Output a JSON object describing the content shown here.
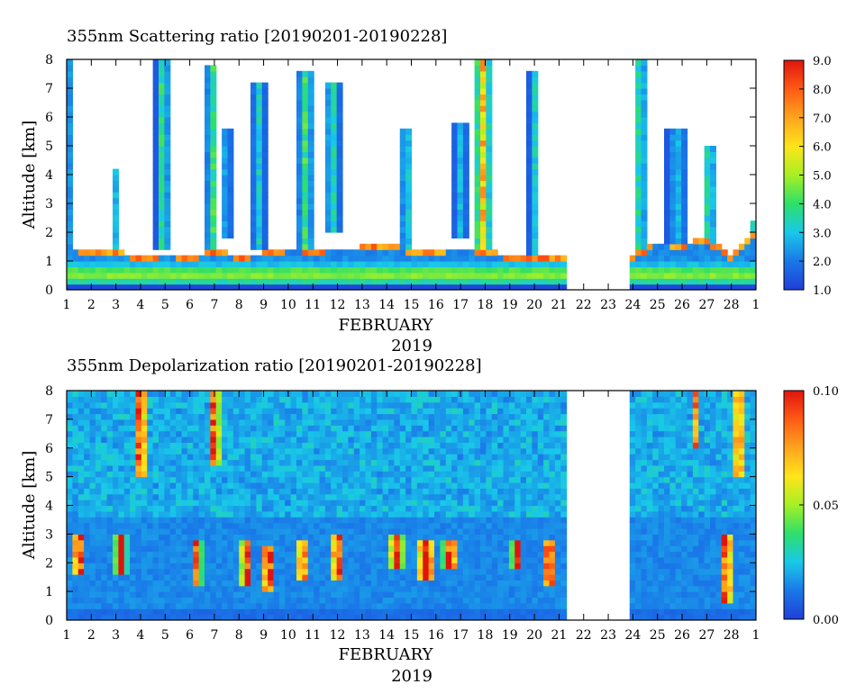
{
  "chart_data": [
    {
      "type": "heatmap",
      "title": "355nm Scattering ratio [20190201-20190228]",
      "xlabel": "FEBRUARY",
      "xlabel2": "2019",
      "ylabel": "Altitude [km]",
      "x_ticks": [
        "1",
        "2",
        "3",
        "4",
        "5",
        "6",
        "7",
        "8",
        "9",
        "10",
        "11",
        "12",
        "13",
        "14",
        "15",
        "16",
        "17",
        "18",
        "19",
        "20",
        "21",
        "22",
        "23",
        "24",
        "25",
        "26",
        "27",
        "28",
        "1"
      ],
      "y_ticks": [
        "0",
        "1",
        "2",
        "3",
        "4",
        "5",
        "6",
        "7",
        "8"
      ],
      "ylim": [
        0,
        8
      ],
      "colorbar": {
        "min": 1.0,
        "max": 9.0,
        "ticks": [
          "1.0",
          "2.0",
          "3.0",
          "4.0",
          "5.0",
          "6.0",
          "7.0",
          "8.0",
          "9.0"
        ]
      },
      "no_data_days": [
        21.2,
        23.9
      ],
      "boundary_layer_top_km": [
        [
          1,
          1.5
        ],
        [
          2,
          1.4
        ],
        [
          3,
          1.4
        ],
        [
          4,
          1.1
        ],
        [
          5,
          1.3
        ],
        [
          6,
          1.2
        ],
        [
          7,
          1.4
        ],
        [
          8,
          1.2
        ],
        [
          9,
          1.3
        ],
        [
          10,
          1.5
        ],
        [
          11,
          1.4
        ],
        [
          12,
          1.5
        ],
        [
          13,
          1.5
        ],
        [
          14,
          1.6
        ],
        [
          15,
          1.4
        ],
        [
          16,
          1.4
        ],
        [
          17,
          1.5
        ],
        [
          18,
          1.4
        ],
        [
          19,
          1.2
        ],
        [
          20,
          1.1
        ],
        [
          21,
          1.2
        ],
        [
          24,
          1.2
        ],
        [
          25,
          1.7
        ],
        [
          26,
          1.6
        ],
        [
          27,
          1.8
        ],
        [
          28,
          1.2
        ],
        [
          29,
          2.0
        ]
      ],
      "cloud_events": [
        {
          "day": 1.1,
          "width": 0.2,
          "base": 0.2,
          "top": 8.0,
          "peak": 2.5
        },
        {
          "day": 3.0,
          "width": 0.4,
          "base": 1.5,
          "top": 4.2,
          "peak": 3.0
        },
        {
          "day": 4.9,
          "width": 0.6,
          "base": 1.5,
          "top": 8.0,
          "peak": 4.5
        },
        {
          "day": 6.9,
          "width": 0.5,
          "base": 1.5,
          "top": 7.8,
          "peak": 5.0
        },
        {
          "day": 7.5,
          "width": 0.4,
          "base": 1.8,
          "top": 5.5,
          "peak": 3.5
        },
        {
          "day": 8.8,
          "width": 0.6,
          "base": 1.5,
          "top": 7.2,
          "peak": 3.5
        },
        {
          "day": 10.7,
          "width": 0.7,
          "base": 0.6,
          "top": 7.5,
          "peak": 4.5
        },
        {
          "day": 11.8,
          "width": 0.7,
          "base": 2.0,
          "top": 7.2,
          "peak": 4.0
        },
        {
          "day": 14.8,
          "width": 0.5,
          "base": 1.5,
          "top": 5.5,
          "peak": 4.0
        },
        {
          "day": 17.0,
          "width": 0.6,
          "base": 1.8,
          "top": 5.8,
          "peak": 3.0
        },
        {
          "day": 17.9,
          "width": 0.8,
          "base": 1.5,
          "top": 8.0,
          "peak": 7.5
        },
        {
          "day": 20.0,
          "width": 0.5,
          "base": 1.0,
          "top": 7.5,
          "peak": 3.5
        },
        {
          "day": 24.3,
          "width": 0.5,
          "base": 1.2,
          "top": 8.0,
          "peak": 5.0
        },
        {
          "day": 25.8,
          "width": 0.9,
          "base": 1.2,
          "top": 5.5,
          "peak": 3.0
        },
        {
          "day": 27.1,
          "width": 0.6,
          "base": 1.0,
          "top": 5.0,
          "peak": 4.5
        },
        {
          "day": 28.9,
          "width": 0.3,
          "base": 0.5,
          "top": 2.3,
          "peak": 3.5
        }
      ]
    },
    {
      "type": "heatmap",
      "title": "355nm Depolarization ratio [20190201-20190228]",
      "xlabel": "FEBRUARY",
      "xlabel2": "2019",
      "ylabel": "Altitude [km]",
      "x_ticks": [
        "1",
        "2",
        "3",
        "4",
        "5",
        "6",
        "7",
        "8",
        "9",
        "10",
        "11",
        "12",
        "13",
        "14",
        "15",
        "16",
        "17",
        "18",
        "19",
        "20",
        "21",
        "22",
        "23",
        "24",
        "25",
        "26",
        "27",
        "28",
        "1"
      ],
      "y_ticks": [
        "0",
        "1",
        "2",
        "3",
        "4",
        "5",
        "6",
        "7",
        "8"
      ],
      "ylim": [
        0,
        8
      ],
      "colorbar": {
        "min": 0.0,
        "max": 0.1,
        "ticks": [
          "0.00",
          "0.05",
          "0.10"
        ]
      },
      "no_data_days": [
        21.2,
        23.9
      ],
      "aerosol_layer_events": [
        {
          "day": 1.5,
          "width": 0.6,
          "base": 1.6,
          "top": 3.0,
          "peak": 0.11
        },
        {
          "day": 3.2,
          "width": 0.5,
          "base": 1.6,
          "top": 3.0,
          "peak": 0.11
        },
        {
          "day": 4.0,
          "width": 0.5,
          "base": 5.0,
          "top": 8.0,
          "peak": 0.12
        },
        {
          "day": 6.3,
          "width": 0.4,
          "base": 1.2,
          "top": 2.8,
          "peak": 0.11
        },
        {
          "day": 7.0,
          "width": 0.5,
          "base": 5.5,
          "top": 8.0,
          "peak": 0.1
        },
        {
          "day": 8.3,
          "width": 0.5,
          "base": 1.3,
          "top": 2.8,
          "peak": 0.11
        },
        {
          "day": 9.2,
          "width": 0.6,
          "base": 1.0,
          "top": 2.6,
          "peak": 0.11
        },
        {
          "day": 10.6,
          "width": 0.6,
          "base": 1.5,
          "top": 2.8,
          "peak": 0.09
        },
        {
          "day": 12.0,
          "width": 0.6,
          "base": 1.5,
          "top": 2.9,
          "peak": 0.1
        },
        {
          "day": 14.4,
          "width": 0.6,
          "base": 1.8,
          "top": 3.0,
          "peak": 0.11
        },
        {
          "day": 15.6,
          "width": 0.8,
          "base": 1.5,
          "top": 2.8,
          "peak": 0.12
        },
        {
          "day": 16.6,
          "width": 0.7,
          "base": 1.8,
          "top": 2.8,
          "peak": 0.11
        },
        {
          "day": 19.3,
          "width": 0.5,
          "base": 1.8,
          "top": 2.8,
          "peak": 0.11
        },
        {
          "day": 20.6,
          "width": 0.6,
          "base": 1.2,
          "top": 2.8,
          "peak": 0.11
        },
        {
          "day": 27.8,
          "width": 0.5,
          "base": 0.6,
          "top": 3.0,
          "peak": 0.12
        },
        {
          "day": 28.3,
          "width": 0.4,
          "base": 5.0,
          "top": 8.0,
          "peak": 0.12
        },
        {
          "day": 26.5,
          "width": 0.3,
          "base": 6.0,
          "top": 8.0,
          "peak": 0.1
        }
      ]
    }
  ]
}
